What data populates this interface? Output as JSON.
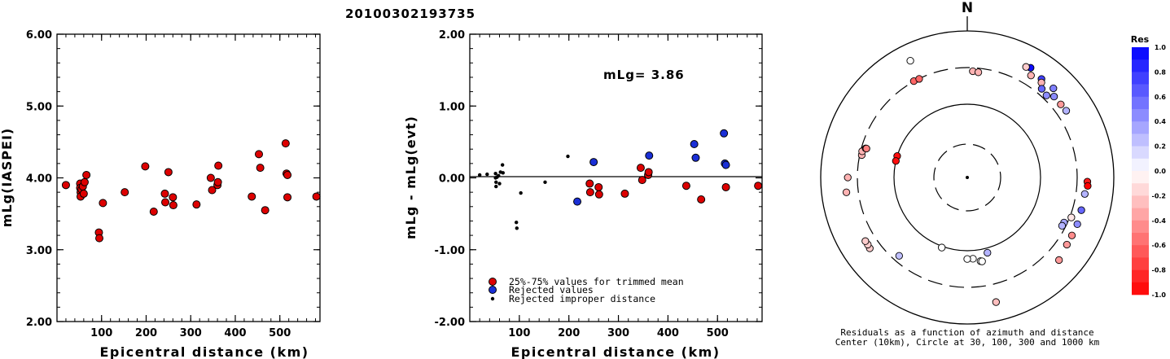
{
  "title": "20100302193735",
  "left_panel": {
    "ylabel": "mLg(IASPEI)",
    "xlabel": "Epicentral distance (km)",
    "yticks": [
      "2.00",
      "3.00",
      "4.00",
      "5.00",
      "6.00"
    ],
    "xticks": [
      "100",
      "200",
      "300",
      "400",
      "500"
    ]
  },
  "middle_panel": {
    "ylabel": "mLg - mLg(evt)",
    "xlabel": "Epicentral distance (km)",
    "yticks": [
      "-2.00",
      "-1.00",
      "0.00",
      "1.00",
      "2.00"
    ],
    "xticks": [
      "100",
      "200",
      "300",
      "400",
      "500"
    ],
    "annotation": "mLg= 3.86",
    "legend": [
      "25%-75% values for trimmed mean",
      "Rejected values",
      "Rejected improper distance"
    ]
  },
  "polar_panel": {
    "north_label": "N",
    "caption_line1": "Residuals as a function of azimuth and distance",
    "caption_line2": "Center (10km), Circle at 30, 100, 300 and 1000 km"
  },
  "colorbar": {
    "title": "Res",
    "ticks": [
      "1.0",
      "0.8",
      "0.6",
      "0.4",
      "0.2",
      "0.0",
      "-0.2",
      "-0.4",
      "-0.6",
      "-0.8",
      "-1.0"
    ]
  },
  "colors": {
    "trimmed": "#dd0000",
    "rejected": "#1a2fd6",
    "improper": "#000000"
  },
  "chart_data": [
    {
      "type": "scatter",
      "title": "20100302193735",
      "xlabel": "Epicentral distance (km)",
      "ylabel": "mLg(IASPEI)",
      "xlim": [
        0,
        590
      ],
      "ylim": [
        2.0,
        6.0
      ],
      "points": [
        [
          20,
          3.9
        ],
        [
          52,
          3.92
        ],
        [
          52,
          3.86
        ],
        [
          53,
          3.8
        ],
        [
          53,
          3.74
        ],
        [
          55,
          3.84
        ],
        [
          58,
          3.88
        ],
        [
          60,
          3.78
        ],
        [
          62,
          3.94
        ],
        [
          66,
          4.04
        ],
        [
          94,
          3.24
        ],
        [
          95,
          3.16
        ],
        [
          103,
          3.65
        ],
        [
          152,
          3.8
        ],
        [
          198,
          4.16
        ],
        [
          217,
          3.53
        ],
        [
          242,
          3.78
        ],
        [
          243,
          3.66
        ],
        [
          250,
          4.08
        ],
        [
          260,
          3.73
        ],
        [
          261,
          3.62
        ],
        [
          313,
          3.63
        ],
        [
          345,
          4.0
        ],
        [
          348,
          3.83
        ],
        [
          360,
          3.9
        ],
        [
          361,
          3.94
        ],
        [
          362,
          4.17
        ],
        [
          437,
          3.74
        ],
        [
          453,
          4.33
        ],
        [
          456,
          4.14
        ],
        [
          467,
          3.55
        ],
        [
          513,
          4.48
        ],
        [
          515,
          4.06
        ],
        [
          517,
          4.04
        ],
        [
          517,
          3.73
        ],
        [
          582,
          3.74
        ]
      ]
    },
    {
      "type": "scatter",
      "xlabel": "Epicentral distance (km)",
      "ylabel": "mLg - mLg(evt)",
      "xlim": [
        0,
        590
      ],
      "ylim": [
        -2.0,
        2.0
      ],
      "annotation": "mLg= 3.86",
      "series": [
        {
          "name": "25%-75% values for trimmed mean",
          "points": [
            [
              242,
              -0.08
            ],
            [
              243,
              -0.2
            ],
            [
              260,
              -0.13
            ],
            [
              261,
              -0.23
            ],
            [
              313,
              -0.22
            ],
            [
              345,
              0.14
            ],
            [
              348,
              -0.03
            ],
            [
              360,
              0.04
            ],
            [
              361,
              0.08
            ],
            [
              437,
              -0.11
            ],
            [
              467,
              -0.3
            ],
            [
              517,
              -0.13
            ],
            [
              582,
              -0.11
            ]
          ]
        },
        {
          "name": "Rejected values",
          "points": [
            [
              217,
              -0.33
            ],
            [
              250,
              0.22
            ],
            [
              362,
              0.31
            ],
            [
              453,
              0.47
            ],
            [
              456,
              0.28
            ],
            [
              513,
              0.62
            ],
            [
              515,
              0.2
            ],
            [
              517,
              0.18
            ]
          ]
        },
        {
          "name": "Rejected improper distance",
          "points": [
            [
              20,
              0.04
            ],
            [
              35,
              0.05
            ],
            [
              52,
              0.06
            ],
            [
              52,
              0.0
            ],
            [
              53,
              -0.06
            ],
            [
              53,
              -0.12
            ],
            [
              55,
              0.01
            ],
            [
              58,
              0.03
            ],
            [
              60,
              -0.08
            ],
            [
              62,
              0.08
            ],
            [
              66,
              0.18
            ],
            [
              67,
              0.07
            ],
            [
              94,
              -0.62
            ],
            [
              95,
              -0.7
            ],
            [
              103,
              -0.21
            ],
            [
              152,
              -0.06
            ],
            [
              198,
              0.3
            ]
          ]
        }
      ]
    },
    {
      "type": "scatter",
      "subtype": "polar",
      "caption": "Residuals as a function of azimuth and distance",
      "rings_km": [
        10,
        30,
        100,
        300,
        1000
      ],
      "points_az_dist_res": [
        [
          334,
          578,
          0.0
        ],
        [
          30,
          520,
          0.95
        ],
        [
          28,
          496,
          -0.2
        ],
        [
          37,
          466,
          0.75
        ],
        [
          44,
          476,
          0.5
        ],
        [
          32,
          421,
          -0.3
        ],
        [
          38,
          424,
          -0.3
        ],
        [
          40,
          364,
          0.6
        ],
        [
          44,
          344,
          0.45
        ],
        [
          47,
          400,
          0.45
        ],
        [
          52,
          400,
          -0.4
        ],
        [
          56,
          409,
          0.3
        ],
        [
          3,
          270,
          -0.3
        ],
        [
          6,
          265,
          -0.3
        ],
        [
          331,
          303,
          -0.6
        ],
        [
          334,
          298,
          -0.6
        ],
        [
          282,
          282,
          -0.3
        ],
        [
          284,
          286,
          -0.3
        ],
        [
          286,
          264,
          -0.45
        ],
        [
          286,
          258,
          -0.5
        ],
        [
          270,
          411,
          -0.3
        ],
        [
          263,
          443,
          -0.3
        ],
        [
          287,
          100,
          -0.95
        ],
        [
          283,
          100,
          -0.95
        ],
        [
          98,
          400,
          0.3
        ],
        [
          92,
          420,
          -0.9
        ],
        [
          94,
          428,
          -1.0
        ],
        [
          106,
          400,
          0.6
        ],
        [
          113,
          412,
          0.45
        ],
        [
          165,
          115,
          0.3
        ],
        [
          200,
          104,
          0.0
        ],
        [
          176,
          128,
          0.0
        ],
        [
          180,
          128,
          0.0
        ],
        [
          171,
          141,
          0.0
        ],
        [
          170,
          143,
          0.0
        ],
        [
          115,
          273,
          0.35
        ],
        [
          117,
          270,
          0.3
        ],
        [
          111,
          316,
          -0.1
        ],
        [
          221,
          250,
          0.25
        ],
        [
          234,
          425,
          -0.2
        ],
        [
          236,
          418,
          -0.2
        ],
        [
          238,
          420,
          -0.2
        ],
        [
          124,
          420,
          -0.4
        ],
        [
          119,
          413,
          -0.45
        ],
        [
          167,
          542,
          -0.25
        ],
        [
          132,
          468,
          -0.4
        ]
      ]
    }
  ]
}
